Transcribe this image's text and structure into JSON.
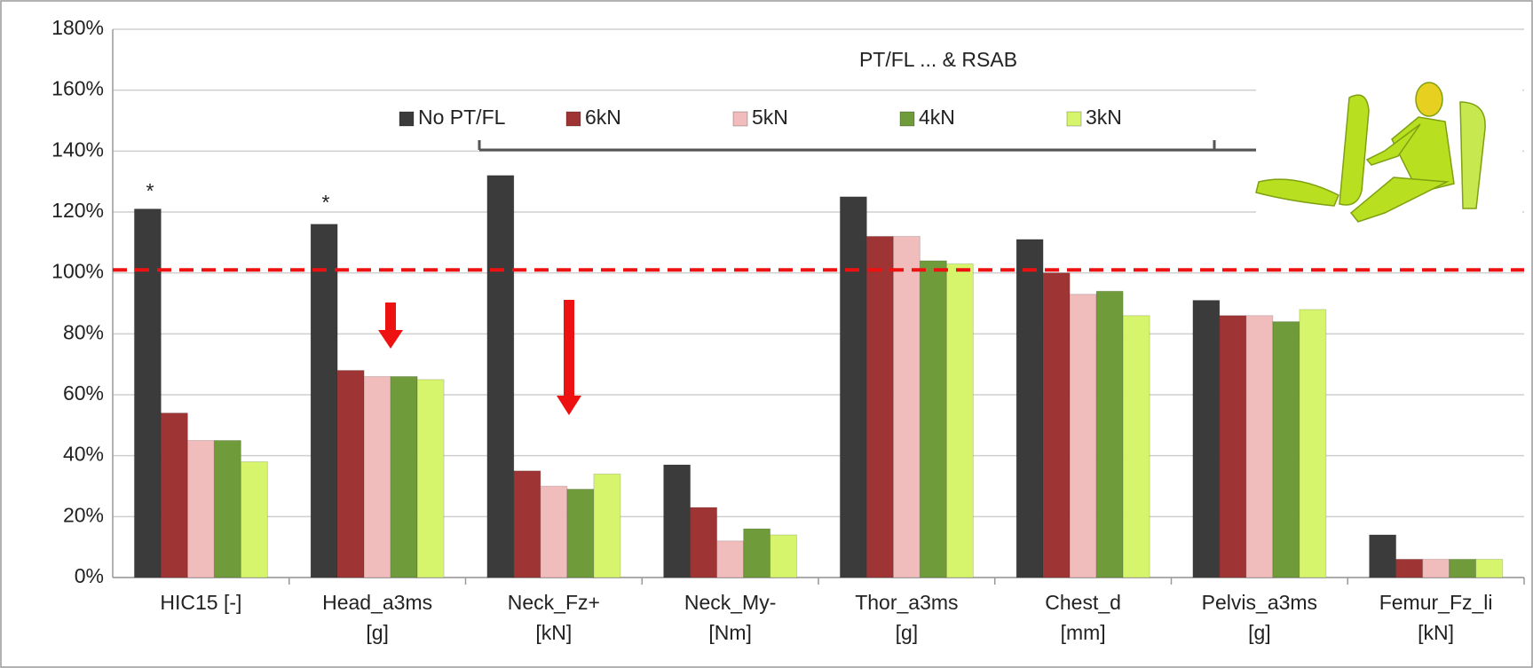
{
  "chart_data": {
    "type": "bar",
    "annotations": [
      "PT/FL ... & RSAB",
      "*",
      "*"
    ],
    "categories": [
      "HIC15 [-]",
      "Head_a3ms [g]",
      "Neck_Fz+ [kN]",
      "Neck_My- [Nm]",
      "Thor_a3ms [g]",
      "Chest_d [mm]",
      "Pelvis_a3ms [g]",
      "Femur_Fz_li [kN]"
    ],
    "series": [
      {
        "name": "No PT/FL",
        "color": "#3b3b3b",
        "values": [
          121,
          116,
          132,
          37,
          125,
          111,
          91,
          14
        ]
      },
      {
        "name": "6kN",
        "color": "#9e3434",
        "values": [
          54,
          68,
          35,
          23,
          112,
          100,
          86,
          6
        ]
      },
      {
        "name": "5kN",
        "color": "#f1bcbc",
        "values": [
          45,
          66,
          30,
          12,
          112,
          93,
          86,
          6
        ]
      },
      {
        "name": "4kN",
        "color": "#6f9b3b",
        "values": [
          45,
          66,
          29,
          16,
          104,
          94,
          84,
          6
        ]
      },
      {
        "name": "3kN",
        "color": "#d6f56c",
        "values": [
          38,
          65,
          34,
          14,
          103,
          86,
          88,
          6
        ]
      }
    ],
    "reference_line": {
      "value": 101,
      "color": "#ee1111"
    },
    "ylim": [
      0,
      180
    ],
    "yticks": [
      {
        "value": 0,
        "label": "0%"
      },
      {
        "value": 20,
        "label": "20%"
      },
      {
        "value": 40,
        "label": "40%"
      },
      {
        "value": 60,
        "label": "60%"
      },
      {
        "value": 80,
        "label": "80%"
      },
      {
        "value": 100,
        "label": "100%"
      },
      {
        "value": 120,
        "label": "120%"
      },
      {
        "value": 140,
        "label": "140%"
      },
      {
        "value": 160,
        "label": "160%"
      },
      {
        "value": 180,
        "label": "180%"
      }
    ],
    "grid": true,
    "legend": "top"
  }
}
